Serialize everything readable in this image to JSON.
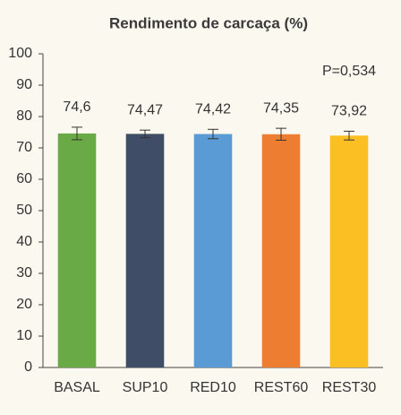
{
  "chart_data": {
    "type": "bar",
    "title": "Rendimento de carcaça (%)",
    "categories": [
      "BASAL",
      "SUP10",
      "RED10",
      "REST60",
      "REST30"
    ],
    "values": [
      74.6,
      74.47,
      74.42,
      74.35,
      73.92
    ],
    "value_labels": [
      "74,6",
      "74,47",
      "74,42",
      "74,35",
      "73,92"
    ],
    "errors": [
      2,
      1.2,
      1.5,
      1.9,
      1.4
    ],
    "colors": [
      "#6aaa46",
      "#3f4d66",
      "#5b9bd5",
      "#ed7d31",
      "#fbbf23"
    ],
    "annotation": "P=0,534",
    "ylim": [
      0,
      100
    ],
    "yticks": [
      0,
      10,
      20,
      30,
      40,
      50,
      60,
      70,
      80,
      90,
      100
    ],
    "grid": false
  }
}
